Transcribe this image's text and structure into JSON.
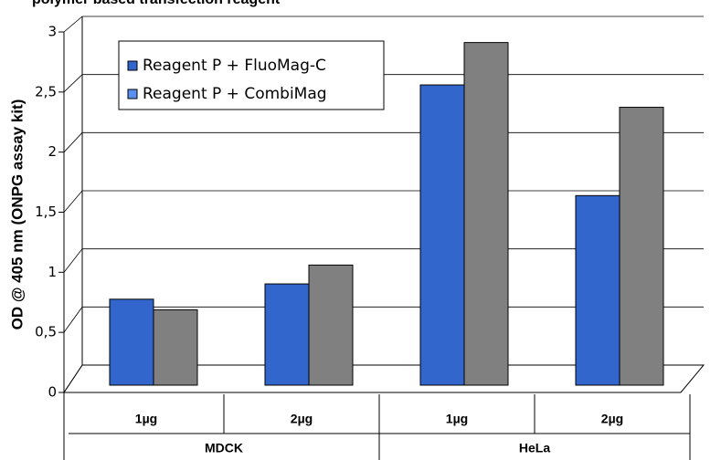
{
  "chart_data": {
    "type": "bar",
    "title": "polymer based transfection reagent",
    "y_label": "OD @ 405 nm (ONPG assay kit)",
    "categories": [
      "1µg",
      "2µg",
      "1µg",
      "2µg"
    ],
    "groups": [
      {
        "name": "MDCK",
        "span": 2
      },
      {
        "name": "HeLa",
        "span": 2
      }
    ],
    "series": [
      {
        "name": "Reagent P + FluoMag-C",
        "color": "#3366cc",
        "legend_color": "#3366cc",
        "values": [
          0.73,
          0.86,
          2.55,
          1.61
        ]
      },
      {
        "name": "Reagent P + CombiMag",
        "color": "#808080",
        "legend_color": "#5b8ff0",
        "values": [
          0.64,
          1.02,
          2.91,
          2.36
        ]
      }
    ],
    "ylim": [
      0,
      3
    ],
    "yticks": [
      0,
      {
        "value": 0.5,
        "label": "0,5"
      },
      1,
      {
        "value": 1.5,
        "label": "1,5"
      },
      2,
      {
        "value": 2.5,
        "label": "2,5"
      },
      3
    ],
    "grid": true,
    "legend": "upper left"
  }
}
